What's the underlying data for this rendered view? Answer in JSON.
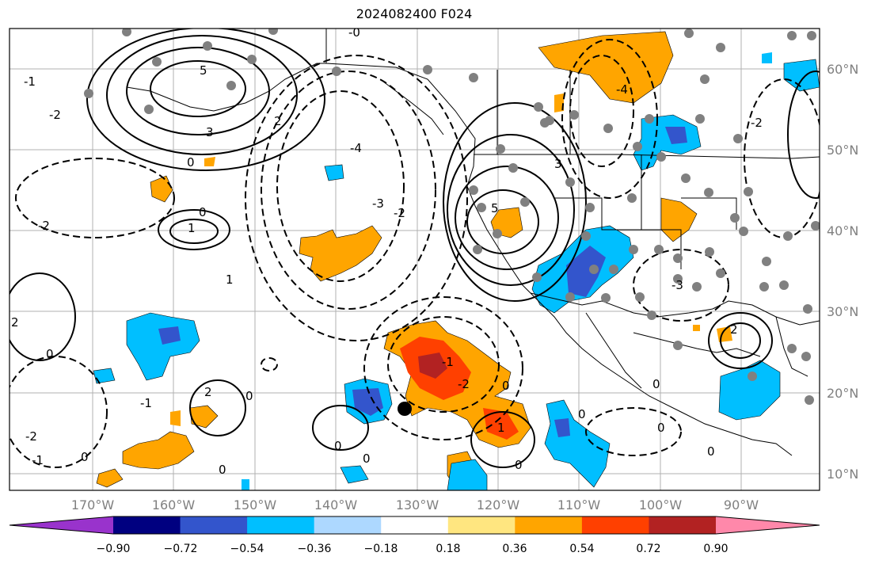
{
  "title": "2024082400 F024",
  "map": {
    "lon_labels": [
      "170°W",
      "160°W",
      "150°W",
      "140°W",
      "130°W",
      "120°W",
      "110°W",
      "100°W",
      "90°W"
    ],
    "lat_labels": [
      "60°N",
      "50°N",
      "40°N",
      "30°N",
      "20°N",
      "10°N"
    ],
    "contour_labels": [
      "5",
      "3",
      "2",
      "1",
      "0",
      "-1",
      "-2",
      "-3",
      "-4",
      "-0",
      "4"
    ]
  },
  "colorbar": {
    "tick_labels": [
      "−0.90",
      "−0.72",
      "−0.54",
      "−0.36",
      "−0.18",
      "0.18",
      "0.36",
      "0.54",
      "0.72",
      "0.90"
    ],
    "colors": [
      "#9933cc",
      "#000080",
      "#3355cc",
      "#00bfff",
      "#add8ff",
      "#ffffff",
      "#ffe680",
      "#ffa500",
      "#ff4000",
      "#b22222",
      "#ff88aa"
    ]
  },
  "chart_data": {
    "type": "heatmap",
    "title": "2024082400 F024",
    "xlabel": "",
    "ylabel": "",
    "xlim": [
      "180°W",
      "80°W"
    ],
    "ylim": [
      "8°N",
      "65°N"
    ],
    "colorbar_ticks": [
      -0.9,
      -0.72,
      -0.54,
      -0.36,
      -0.18,
      0.18,
      0.36,
      0.54,
      0.72,
      0.9
    ]
  }
}
